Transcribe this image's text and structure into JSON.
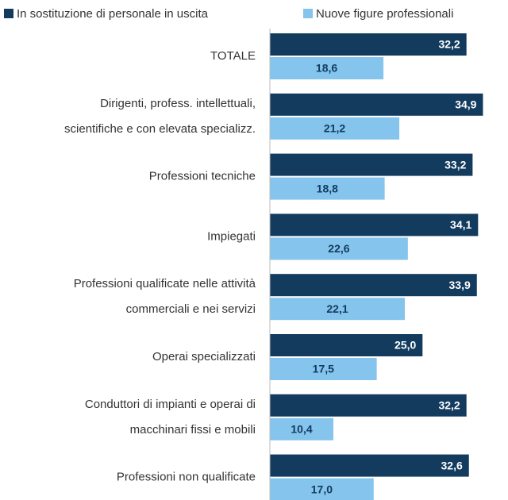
{
  "chart_data": {
    "type": "bar",
    "orientation": "horizontal",
    "categories": [
      [
        "TOTALE"
      ],
      [
        "Dirigenti, profess. intellettuali,",
        "scientifiche e con elevata specializz."
      ],
      [
        "Professioni tecniche"
      ],
      [
        "Impiegati"
      ],
      [
        "Professioni qualificate nelle attività",
        "commerciali e nei servizi"
      ],
      [
        "Operai specializzati"
      ],
      [
        "Conduttori di impianti e operai di",
        "macchinari fissi e mobili"
      ],
      [
        "Professioni non qualificate"
      ]
    ],
    "series": [
      {
        "name": "In sostituzione di personale in uscita",
        "color": "#123b5e",
        "values": [
          32.2,
          34.9,
          33.2,
          34.1,
          33.9,
          25.0,
          32.2,
          32.6
        ],
        "value_labels": [
          "32,2",
          "34,9",
          "33,2",
          "34,1",
          "33,9",
          "25,0",
          "32,2",
          "32,6"
        ]
      },
      {
        "name": "Nuove figure professionali",
        "color": "#85c4ec",
        "values": [
          18.6,
          21.2,
          18.8,
          22.6,
          22.1,
          17.5,
          10.4,
          17.0
        ],
        "value_labels": [
          "18,6",
          "21,2",
          "18,8",
          "22,6",
          "22,1",
          "17,5",
          "10,4",
          "17,0"
        ]
      }
    ],
    "xlim": [
      0,
      39
    ],
    "legend": "top"
  }
}
